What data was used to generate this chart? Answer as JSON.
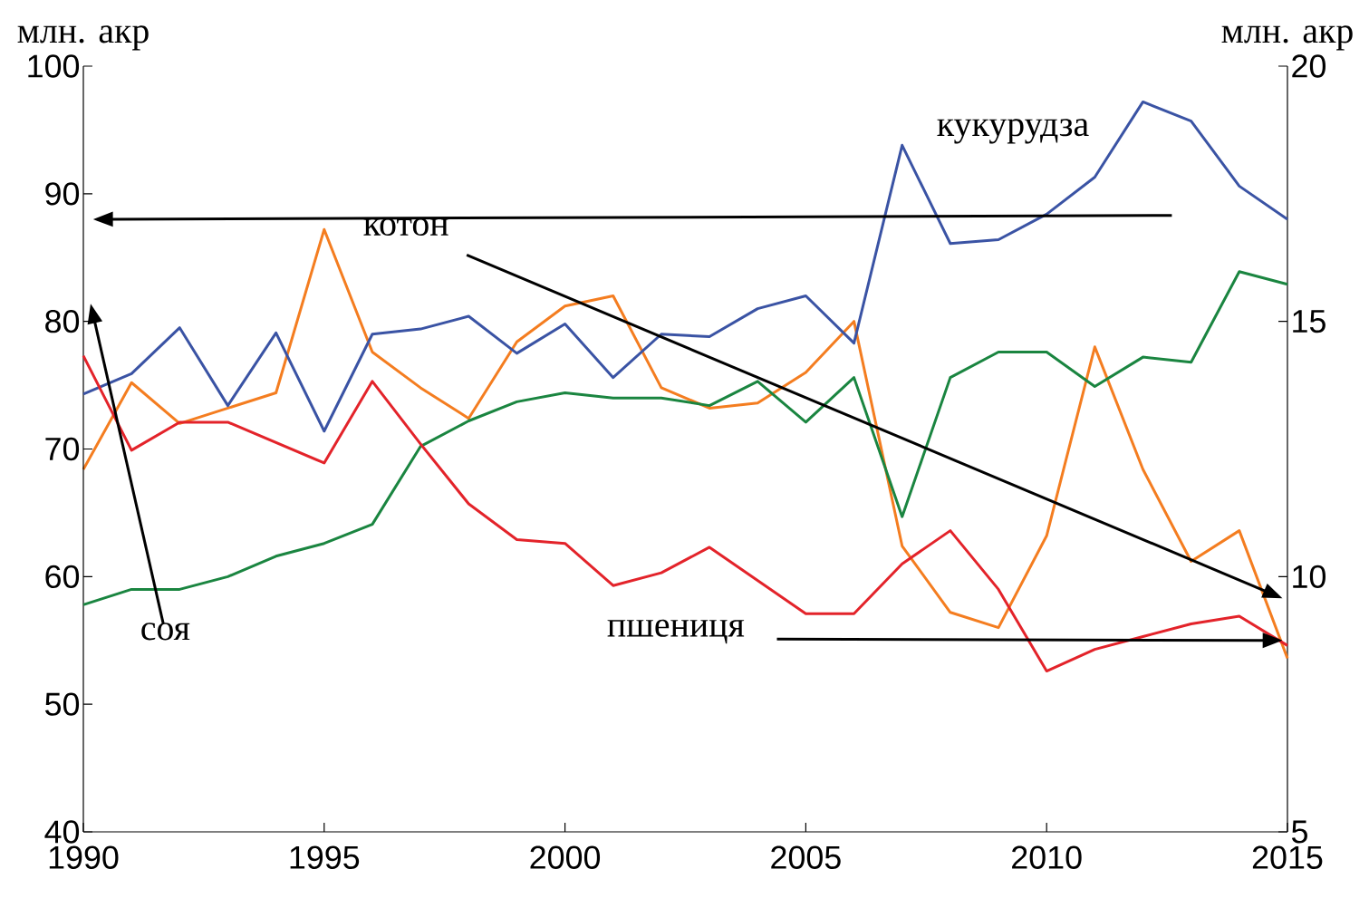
{
  "chart_data": {
    "type": "line",
    "ylabel": "млн. акр",
    "y2label": "млн. акр",
    "x": [
      1990,
      1991,
      1992,
      1993,
      1994,
      1995,
      1996,
      1997,
      1998,
      1999,
      2000,
      2001,
      2002,
      2003,
      2004,
      2005,
      2006,
      2007,
      2008,
      2009,
      2010,
      2011,
      2012,
      2013,
      2014,
      2015
    ],
    "xlim": [
      1990,
      2015
    ],
    "xticks": [
      1990,
      1995,
      2000,
      2005,
      2010,
      2015
    ],
    "ylim": [
      40,
      100
    ],
    "yticks": [
      40,
      50,
      60,
      70,
      80,
      90,
      100
    ],
    "y2lim": [
      5,
      20
    ],
    "y2ticks": [
      5,
      10,
      15,
      20
    ],
    "line_style": "solid",
    "series": [
      {
        "color": "#3a53a4",
        "values": [
          74.3,
          75.9,
          79.5,
          73.4,
          79.1,
          71.4,
          79.0,
          79.4,
          80.4,
          77.5,
          79.8,
          75.6,
          79.0,
          78.8,
          81.0,
          82.0,
          78.3,
          93.8,
          86.1,
          86.4,
          88.4,
          91.3,
          97.2,
          95.7,
          90.6,
          88.0
        ]
      },
      {
        "color": "#1a8540",
        "values": [
          57.8,
          59.0,
          59.0,
          60.0,
          61.6,
          62.6,
          64.1,
          70.2,
          72.2,
          73.7,
          74.4,
          74.0,
          74.0,
          73.4,
          75.3,
          72.1,
          75.6,
          64.7,
          75.6,
          77.6,
          77.6,
          74.9,
          77.2,
          76.8,
          83.9,
          82.9
        ]
      },
      {
        "color": "#e3232a",
        "values": [
          77.3,
          69.9,
          72.1,
          72.1,
          70.5,
          68.9,
          75.3,
          70.4,
          65.7,
          62.9,
          62.6,
          59.3,
          60.3,
          62.3,
          59.7,
          57.1,
          57.1,
          61.0,
          63.6,
          59.0,
          52.6,
          54.3,
          55.3,
          56.3,
          56.9,
          54.6
        ]
      },
      {
        "color": "#f47d20",
        "axis": "y2",
        "values": [
          12.1,
          13.8,
          13.0,
          13.3,
          13.6,
          16.8,
          14.4,
          13.7,
          13.1,
          14.6,
          15.3,
          15.5,
          13.7,
          13.3,
          13.4,
          14.0,
          15.0,
          10.6,
          9.3,
          9.0,
          10.8,
          14.5,
          12.1,
          10.3,
          10.9,
          8.4
        ]
      }
    ],
    "annotations": [
      "кукурудза",
      "котон",
      "соя",
      "пшениця"
    ]
  }
}
